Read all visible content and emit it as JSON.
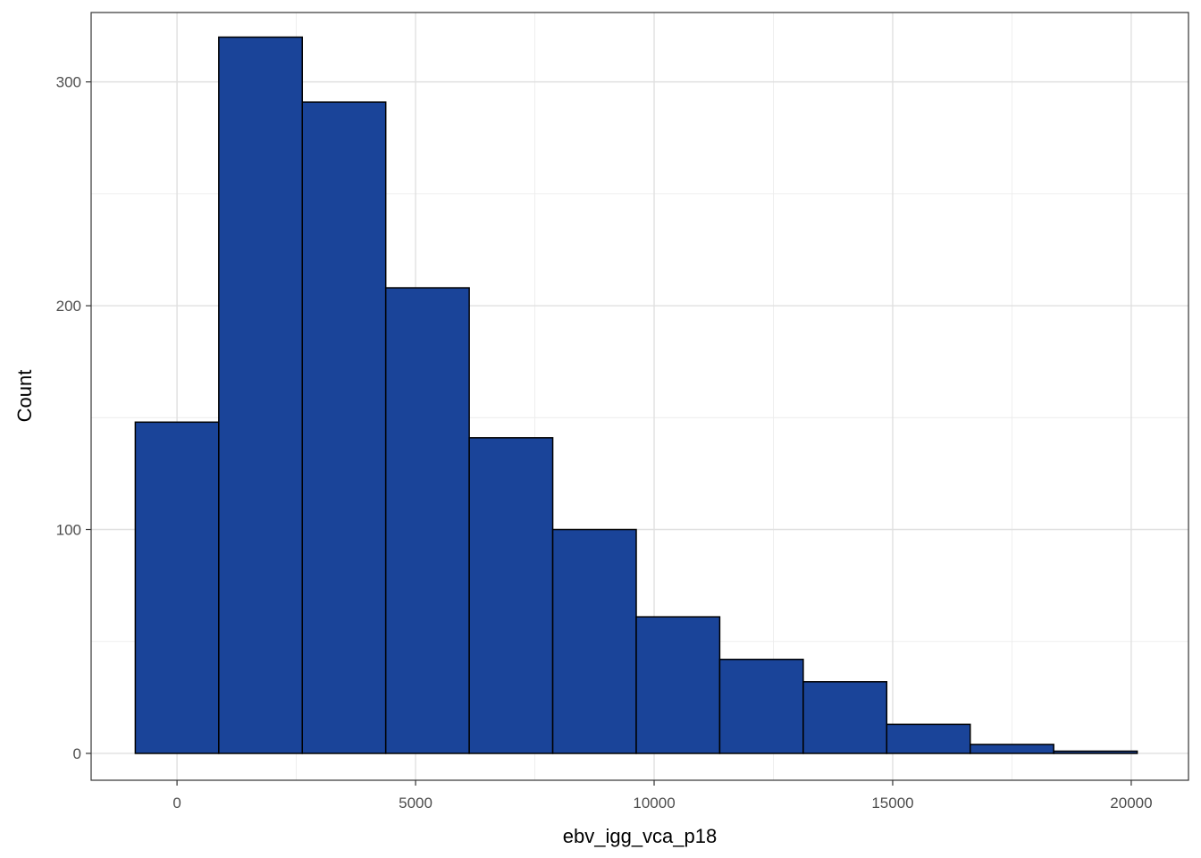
{
  "chart_data": {
    "type": "histogram",
    "title": "",
    "xlabel": "ebv_igg_vca_p18",
    "ylabel": "Count",
    "xlim": [
      -1800,
      21200
    ],
    "ylim": [
      -12,
      331
    ],
    "x_ticks": [
      0,
      5000,
      10000,
      15000,
      20000
    ],
    "x_minor_ticks": [
      2500,
      7500,
      12500,
      17500
    ],
    "y_ticks": [
      0,
      100,
      200,
      300
    ],
    "y_minor_ticks": [
      50,
      150,
      250
    ],
    "grid": true,
    "legend": "none",
    "fill_color": "#1A4499",
    "edge_color": "#000000",
    "bins": [
      {
        "x_start": -875,
        "x_end": 875,
        "count": 148
      },
      {
        "x_start": 875,
        "x_end": 2625,
        "count": 320
      },
      {
        "x_start": 2625,
        "x_end": 4375,
        "count": 291
      },
      {
        "x_start": 4375,
        "x_end": 6125,
        "count": 208
      },
      {
        "x_start": 6125,
        "x_end": 7875,
        "count": 141
      },
      {
        "x_start": 7875,
        "x_end": 9625,
        "count": 100
      },
      {
        "x_start": 9625,
        "x_end": 11375,
        "count": 61
      },
      {
        "x_start": 11375,
        "x_end": 13125,
        "count": 42
      },
      {
        "x_start": 13125,
        "x_end": 14875,
        "count": 32
      },
      {
        "x_start": 14875,
        "x_end": 16625,
        "count": 13
      },
      {
        "x_start": 16625,
        "x_end": 18375,
        "count": 4
      },
      {
        "x_start": 18375,
        "x_end": 20125,
        "count": 1
      }
    ]
  }
}
